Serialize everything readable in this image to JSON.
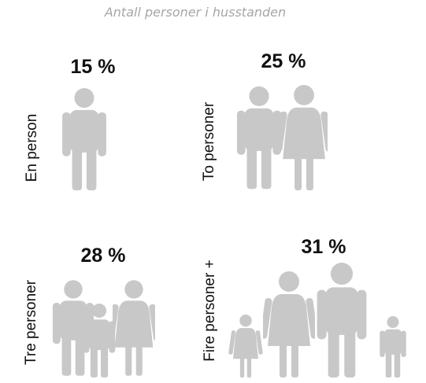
{
  "title": "Antall personer i husstanden",
  "panels": [
    {
      "label": "En person",
      "value": "15 %"
    },
    {
      "label": "To personer",
      "value": "25 %"
    },
    {
      "label": "Tre personer",
      "value": "28 %"
    },
    {
      "label": "Fire personer +",
      "value": "31 %"
    }
  ]
}
